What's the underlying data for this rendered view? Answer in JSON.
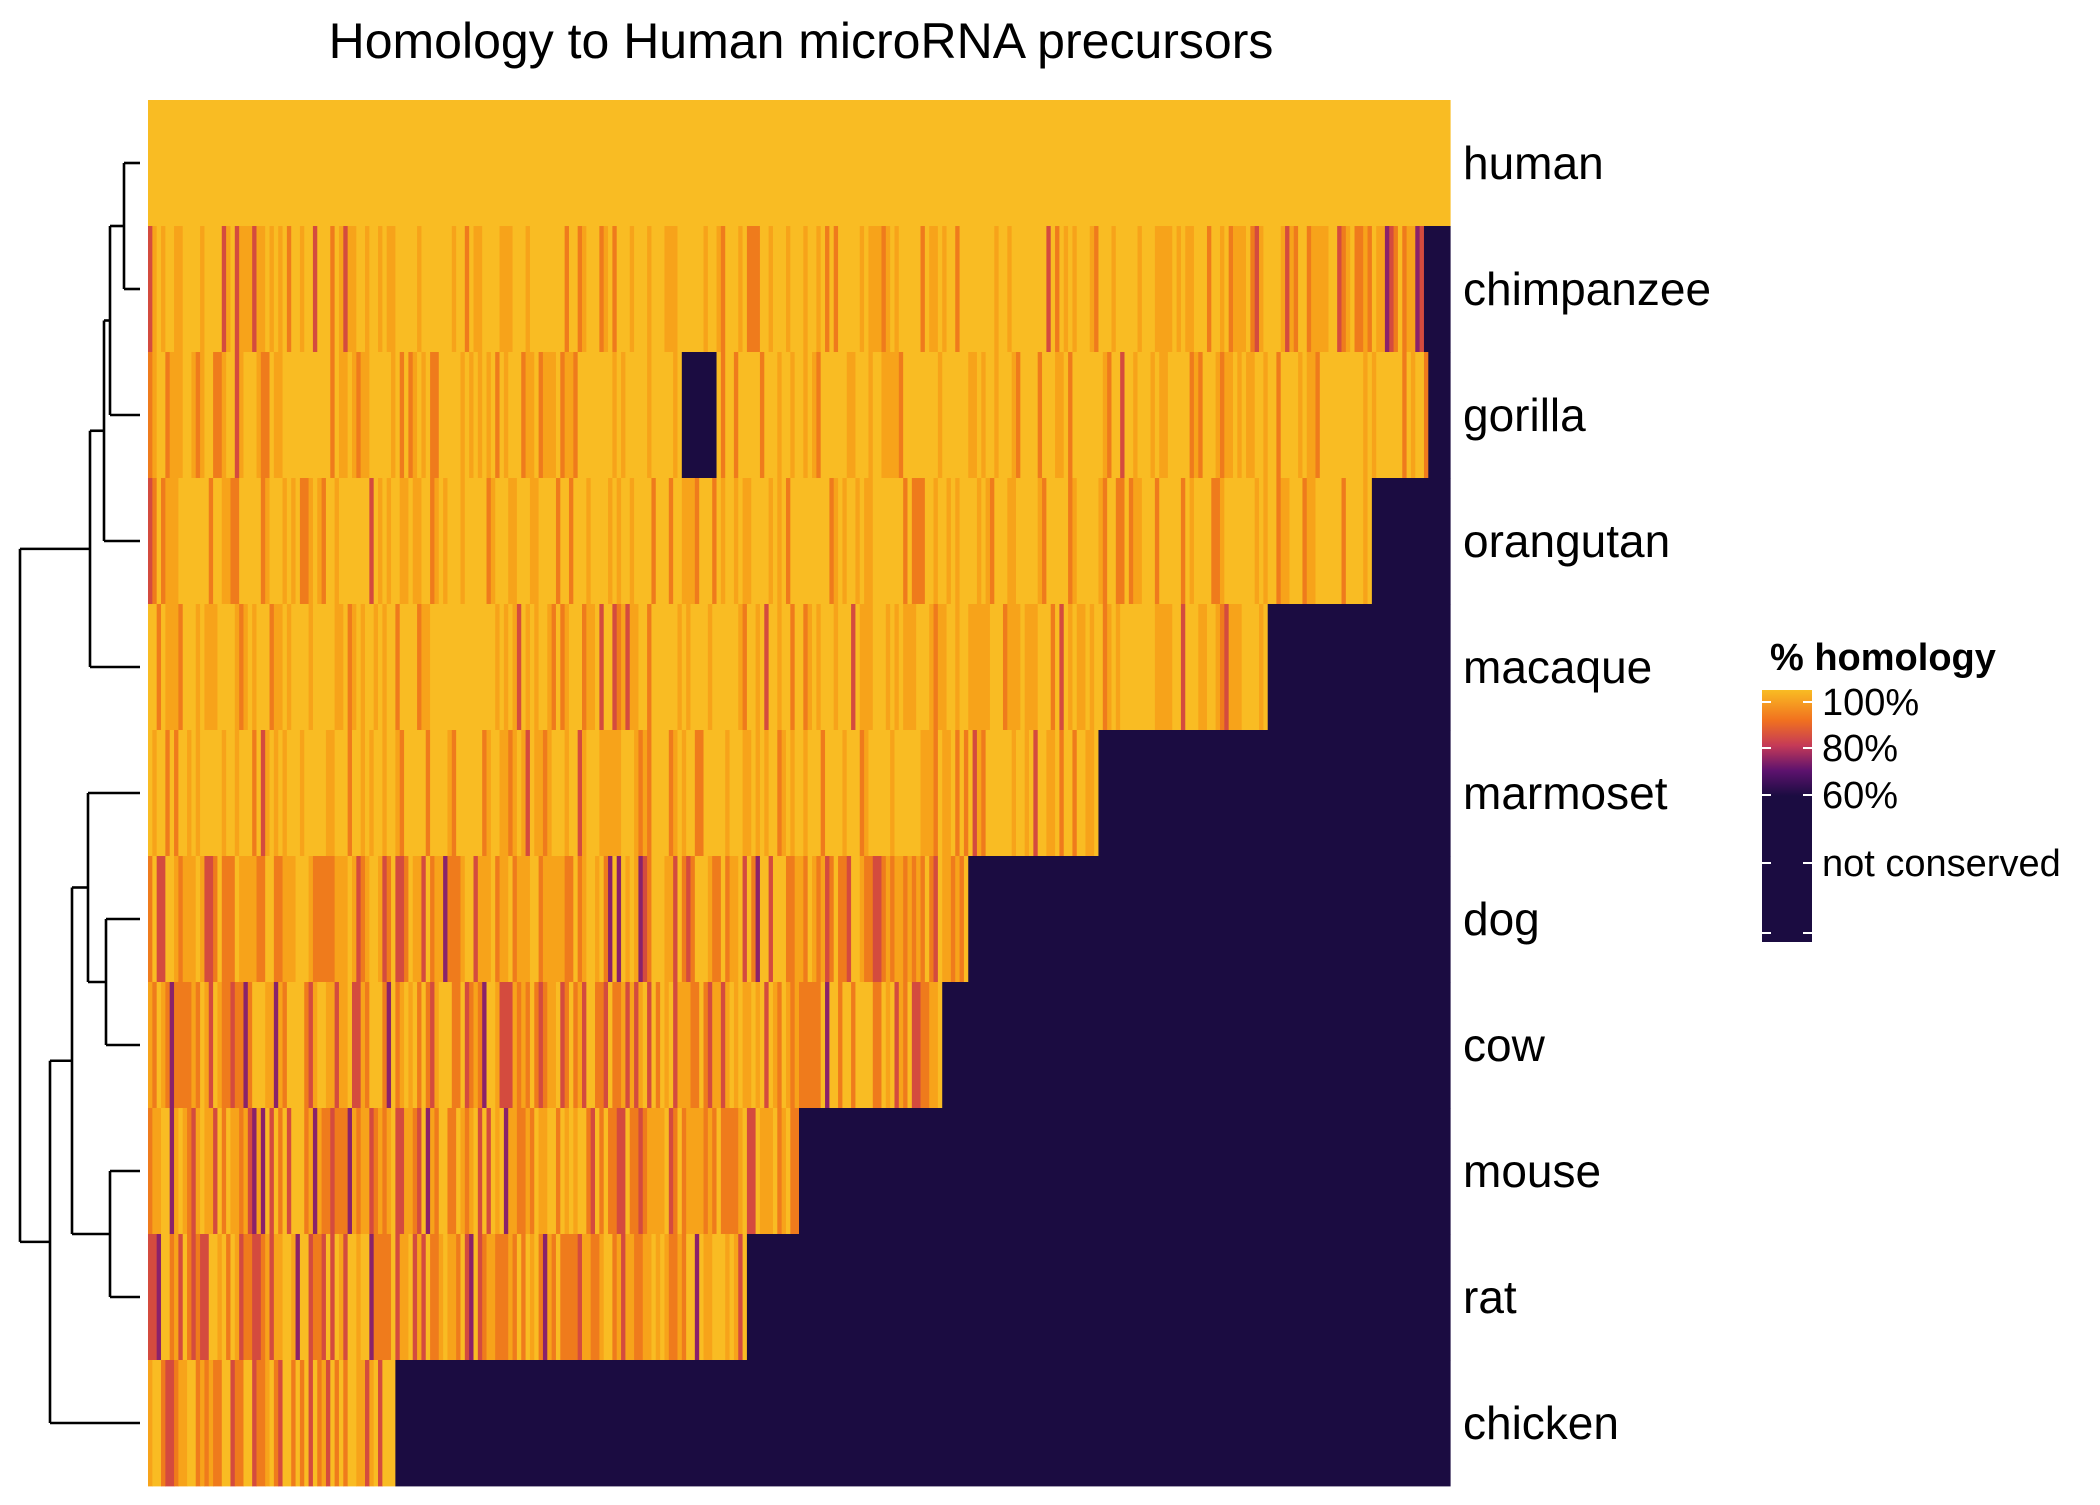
{
  "chart_data": {
    "type": "heatmap",
    "title": "Homology to Human microRNA precursors",
    "rows": [
      "human",
      "chimpanzee",
      "gorilla",
      "orangutan",
      "macaque",
      "marmoset",
      "dog",
      "cow",
      "mouse",
      "rat",
      "chicken"
    ],
    "columns_note": "",
    "dendrogram": {
      "leaves": [
        "human",
        "chimpanzee",
        "gorilla",
        "orangutan",
        "macaque",
        "marmoset",
        "dog",
        "cow",
        "mouse",
        "rat",
        "chicken"
      ],
      "merges": [
        [
          "human",
          "chimpanzee"
        ],
        [
          "human+chimpanzee",
          "gorilla"
        ],
        [
          "human+chimpanzee+gorilla",
          "orangutan"
        ],
        [
          "primates-ape",
          "macaque"
        ],
        [
          "dog",
          "cow"
        ],
        [
          "marmoset",
          "dog+cow"
        ],
        [
          "mouse",
          "rat"
        ],
        [
          "marmoset+dog+cow",
          "mouse+rat"
        ],
        [
          "mammals-other",
          "chicken"
        ],
        [
          "primates",
          "others"
        ]
      ]
    },
    "row_profiles": {
      "human": [
        [
          "100",
          1.0
        ]
      ],
      "chimpanzee": [
        [
          "high",
          0.86
        ],
        [
          "mixed",
          0.12
        ],
        [
          "not_conserved",
          0.02
        ]
      ],
      "gorilla": [
        [
          "high",
          0.41
        ],
        [
          "not_conserved",
          0.025
        ],
        [
          "high",
          0.545
        ],
        [
          "not_conserved",
          0.02
        ]
      ],
      "orangutan": [
        [
          "high",
          0.94
        ],
        [
          "not_conserved",
          0.06
        ]
      ],
      "macaque": [
        [
          "high",
          0.86
        ],
        [
          "not_conserved",
          0.14
        ]
      ],
      "marmoset": [
        [
          "high",
          0.73
        ],
        [
          "not_conserved",
          0.27
        ]
      ],
      "dog": [
        [
          "mixed",
          0.63
        ],
        [
          "not_conserved",
          0.37
        ]
      ],
      "cow": [
        [
          "mixed",
          0.61
        ],
        [
          "not_conserved",
          0.39
        ]
      ],
      "mouse": [
        [
          "mixed",
          0.5
        ],
        [
          "not_conserved",
          0.5
        ]
      ],
      "rat": [
        [
          "mixed",
          0.46
        ],
        [
          "not_conserved",
          0.54
        ]
      ],
      "chicken": [
        [
          "mixed",
          0.19
        ],
        [
          "not_conserved",
          0.81
        ]
      ]
    },
    "legend": {
      "title": "% homology",
      "ticks": [
        "100%",
        "80%",
        "60%",
        "not conserved"
      ],
      "colors": [
        "#f9bc23",
        "#f1711f",
        "#c53a57",
        "#5d126e",
        "#1b0c41"
      ]
    },
    "colors": {
      "full": "#f9bc23",
      "high": "#f7a31a",
      "mid": "#ef7b1c",
      "low": "#d44b3e",
      "very_low": "#8a226a",
      "not_conserved": "#1b0c41"
    }
  }
}
